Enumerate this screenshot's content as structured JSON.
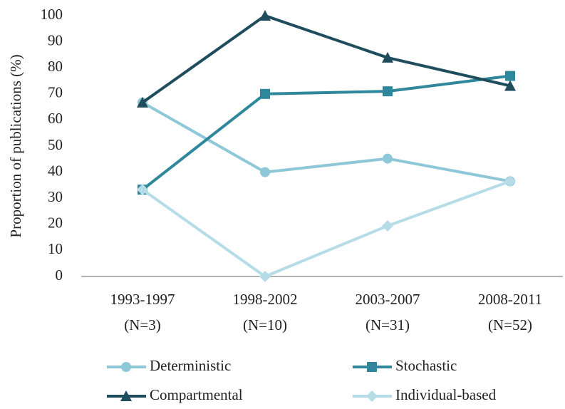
{
  "chart_data": {
    "type": "line",
    "ylabel": "Proportion of publications (%)",
    "categories": [
      [
        "1993-1997",
        "(N=3)"
      ],
      [
        "1998-2002",
        "(N=10)"
      ],
      [
        "2003-2007",
        "(N=31)"
      ],
      [
        "2008-2011",
        "(N=52)"
      ]
    ],
    "series": [
      {
        "name": "Deterministic",
        "color": "#8ec7d8",
        "marker": "circle",
        "values": [
          66.7,
          40,
          45.2,
          36.5
        ]
      },
      {
        "name": "Stochastic",
        "color": "#2e879b",
        "marker": "square",
        "values": [
          33.3,
          70,
          71,
          76.9
        ]
      },
      {
        "name": "Compartmental",
        "color": "#1f4d5e",
        "marker": "triangle",
        "values": [
          66.7,
          100,
          83.9,
          73.1
        ]
      },
      {
        "name": "Individual-based",
        "color": "#b5dce7",
        "marker": "diamond",
        "values": [
          33.3,
          0,
          19.4,
          36.5
        ]
      }
    ],
    "ylim": [
      0,
      100
    ],
    "yticks": [
      0,
      10,
      20,
      30,
      40,
      50,
      60,
      70,
      80,
      90,
      100
    ],
    "grid": false,
    "legend": "bottom"
  }
}
